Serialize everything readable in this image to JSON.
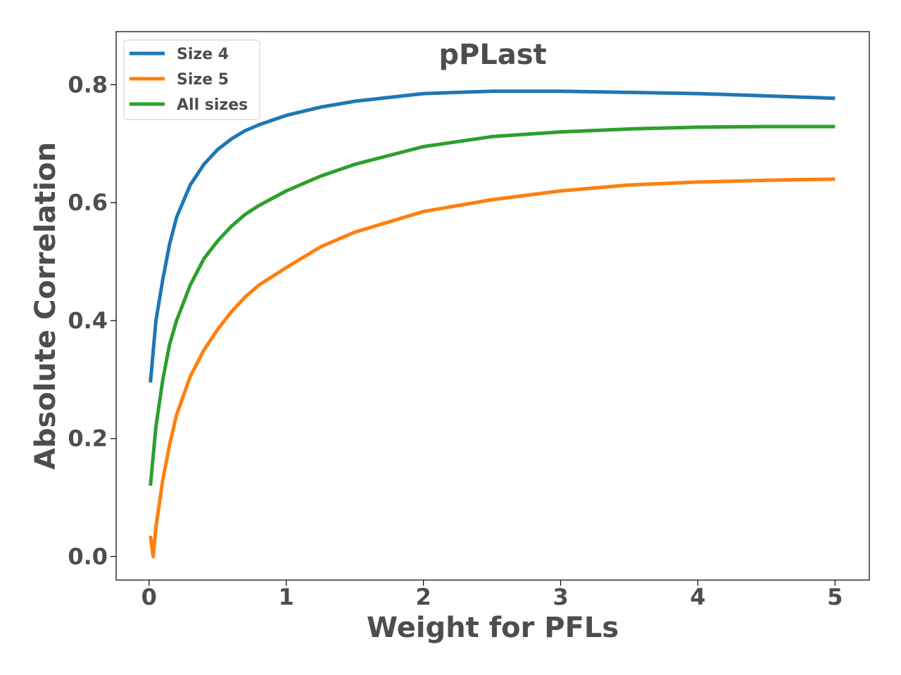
{
  "chart_data": {
    "type": "line",
    "title": "pPLast",
    "xlabel": "Weight for PFLs",
    "ylabel": "Absolute Correlation",
    "xlim": [
      -0.24,
      5.25
    ],
    "ylim": [
      -0.04,
      0.89
    ],
    "xticks": [
      0,
      1,
      2,
      3,
      4,
      5
    ],
    "xtick_labels": [
      "0",
      "1",
      "2",
      "3",
      "4",
      "5"
    ],
    "yticks": [
      0.0,
      0.2,
      0.4,
      0.6,
      0.8
    ],
    "ytick_labels": [
      "0.0",
      "0.2",
      "0.4",
      "0.6",
      "0.8"
    ],
    "grid": false,
    "legend_position": "top-left",
    "series": [
      {
        "name": "Size 4",
        "color": "#1f77b4",
        "x": [
          0.01,
          0.05,
          0.1,
          0.15,
          0.2,
          0.3,
          0.4,
          0.5,
          0.6,
          0.7,
          0.8,
          1.0,
          1.25,
          1.5,
          2.0,
          2.5,
          3.0,
          3.5,
          4.0,
          4.5,
          5.0
        ],
        "y": [
          0.295,
          0.4,
          0.47,
          0.53,
          0.575,
          0.63,
          0.665,
          0.69,
          0.708,
          0.722,
          0.732,
          0.748,
          0.762,
          0.772,
          0.785,
          0.789,
          0.789,
          0.787,
          0.785,
          0.781,
          0.777
        ]
      },
      {
        "name": "Size 5",
        "color": "#ff7f0e",
        "x": [
          0.01,
          0.03,
          0.05,
          0.1,
          0.15,
          0.2,
          0.3,
          0.4,
          0.5,
          0.6,
          0.7,
          0.8,
          1.0,
          1.25,
          1.5,
          2.0,
          2.5,
          3.0,
          3.5,
          4.0,
          4.5,
          5.0
        ],
        "y": [
          0.035,
          0.0,
          0.05,
          0.13,
          0.19,
          0.24,
          0.305,
          0.35,
          0.385,
          0.415,
          0.44,
          0.46,
          0.49,
          0.525,
          0.55,
          0.585,
          0.605,
          0.62,
          0.63,
          0.635,
          0.638,
          0.64
        ]
      },
      {
        "name": "All sizes",
        "color": "#2ca02c",
        "x": [
          0.01,
          0.05,
          0.1,
          0.15,
          0.2,
          0.3,
          0.4,
          0.5,
          0.6,
          0.7,
          0.8,
          1.0,
          1.25,
          1.5,
          2.0,
          2.5,
          3.0,
          3.5,
          4.0,
          4.5,
          5.0
        ],
        "y": [
          0.12,
          0.22,
          0.3,
          0.36,
          0.4,
          0.46,
          0.505,
          0.535,
          0.56,
          0.58,
          0.595,
          0.62,
          0.645,
          0.665,
          0.695,
          0.712,
          0.72,
          0.725,
          0.728,
          0.729,
          0.729
        ]
      }
    ]
  }
}
